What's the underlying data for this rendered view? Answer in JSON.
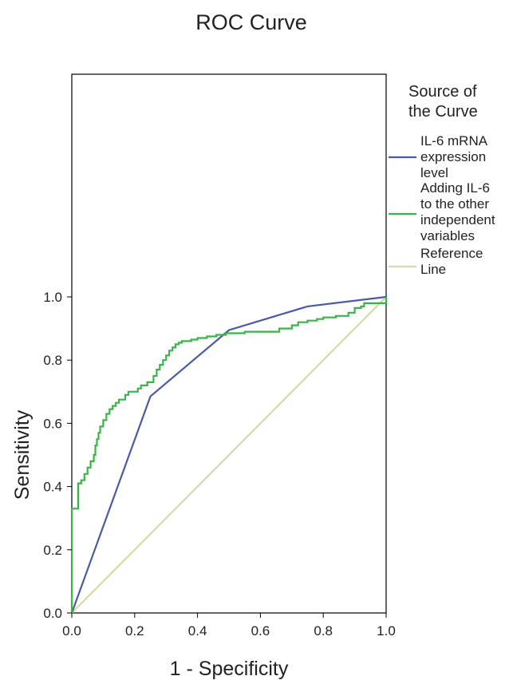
{
  "chart_data": {
    "type": "line",
    "title": "ROC Curve",
    "xlabel": "1 - Specificity",
    "ylabel": "Sensitivity",
    "xlim": [
      0,
      1
    ],
    "ylim": [
      0,
      1
    ],
    "xticks": [
      "0.0",
      "0.2",
      "0.4",
      "0.6",
      "0.8",
      "1.0"
    ],
    "yticks": [
      "0.0",
      "0.2",
      "0.4",
      "0.6",
      "0.8",
      "1.0"
    ],
    "grid": false,
    "legend": {
      "title": [
        "Source of",
        "the Curve"
      ],
      "placement": "right"
    },
    "series": [
      {
        "name": "IL-6 mRNA expression level",
        "legend_lines": [
          "IL-6 mRNA",
          "expression",
          "level"
        ],
        "color": "#4a5aa8",
        "step": false,
        "x": [
          0.0,
          0.25,
          0.5,
          0.75,
          1.0
        ],
        "y": [
          0.0,
          0.685,
          0.895,
          0.97,
          1.0
        ]
      },
      {
        "name": "Adding IL-6 to the other independent variables",
        "legend_lines": [
          "Adding IL-6",
          "to the other",
          "independent",
          "variables"
        ],
        "color": "#3bb34a",
        "step": true,
        "x": [
          0.0,
          0.0,
          0.02,
          0.02,
          0.03,
          0.04,
          0.05,
          0.06,
          0.07,
          0.075,
          0.08,
          0.085,
          0.09,
          0.1,
          0.11,
          0.12,
          0.13,
          0.14,
          0.15,
          0.17,
          0.18,
          0.21,
          0.22,
          0.24,
          0.26,
          0.27,
          0.28,
          0.29,
          0.3,
          0.31,
          0.32,
          0.33,
          0.34,
          0.35,
          0.38,
          0.4,
          0.43,
          0.46,
          0.49,
          0.55,
          0.64,
          0.66,
          0.7,
          0.72,
          0.75,
          0.78,
          0.8,
          0.82,
          0.84,
          0.86,
          0.88,
          0.9,
          0.92,
          0.93,
          1.0
        ],
        "y": [
          0.0,
          0.33,
          0.33,
          0.41,
          0.42,
          0.44,
          0.46,
          0.48,
          0.5,
          0.53,
          0.55,
          0.57,
          0.59,
          0.61,
          0.63,
          0.645,
          0.655,
          0.665,
          0.675,
          0.69,
          0.7,
          0.71,
          0.72,
          0.73,
          0.75,
          0.77,
          0.785,
          0.8,
          0.815,
          0.83,
          0.84,
          0.85,
          0.855,
          0.86,
          0.865,
          0.87,
          0.875,
          0.88,
          0.885,
          0.89,
          0.89,
          0.9,
          0.91,
          0.92,
          0.925,
          0.93,
          0.935,
          0.935,
          0.94,
          0.94,
          0.95,
          0.965,
          0.97,
          0.98,
          1.0
        ]
      },
      {
        "name": "Reference Line",
        "legend_lines": [
          "Reference",
          "Line"
        ],
        "color": "#d8d8a8",
        "step": false,
        "x": [
          0.0,
          1.0
        ],
        "y": [
          0.0,
          1.0
        ]
      }
    ]
  }
}
